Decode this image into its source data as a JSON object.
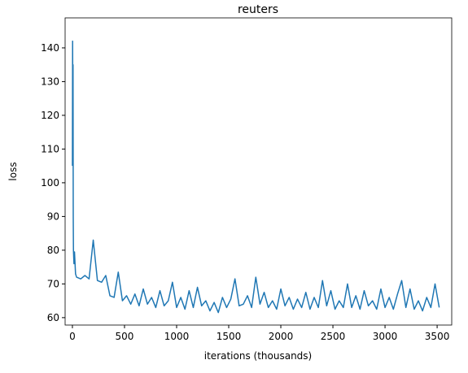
{
  "chart_data": {
    "type": "line",
    "title": "reuters",
    "x_label": "iterations (thousands)",
    "y_label": "loss",
    "x": [
      0,
      2,
      4,
      6,
      8,
      10,
      15,
      20,
      30,
      40,
      80,
      120,
      160,
      200,
      240,
      280,
      320,
      360,
      400,
      440,
      480,
      520,
      560,
      600,
      640,
      680,
      720,
      760,
      800,
      840,
      880,
      920,
      960,
      1000,
      1040,
      1080,
      1120,
      1160,
      1200,
      1240,
      1280,
      1320,
      1360,
      1400,
      1440,
      1480,
      1520,
      1560,
      1600,
      1640,
      1680,
      1720,
      1760,
      1800,
      1840,
      1880,
      1920,
      1960,
      2000,
      2040,
      2080,
      2120,
      2160,
      2200,
      2240,
      2280,
      2320,
      2360,
      2400,
      2440,
      2480,
      2520,
      2560,
      2600,
      2640,
      2680,
      2720,
      2760,
      2800,
      2840,
      2880,
      2920,
      2960,
      3000,
      3040,
      3080,
      3120,
      3160,
      3200,
      3240,
      3280,
      3320,
      3360,
      3400,
      3440,
      3480,
      3520
    ],
    "series": [
      {
        "name": "loss",
        "color": "#1f77b4",
        "values": [
          105,
          142,
          120,
          135,
          90,
          80,
          76,
          79.5,
          73,
          72,
          71.5,
          72.5,
          71.5,
          83,
          71,
          70.5,
          72.5,
          66.5,
          66,
          73.5,
          65,
          66.5,
          64,
          67,
          63.5,
          68.5,
          64,
          66,
          63,
          68,
          63.5,
          65,
          70.5,
          63,
          66,
          62.5,
          68,
          63,
          69,
          63.5,
          65,
          62,
          64.5,
          61.5,
          66,
          63,
          65.5,
          71.5,
          63.5,
          64,
          66.5,
          63,
          72,
          64,
          67.5,
          63,
          65,
          62.5,
          68.5,
          63.5,
          66,
          62.5,
          65.5,
          63,
          67.5,
          62.5,
          66,
          63,
          71,
          63.5,
          68,
          62.5,
          65,
          63,
          70,
          63,
          66.5,
          62.5,
          68,
          63.5,
          65,
          62.5,
          68.5,
          63,
          66,
          62.5,
          67,
          71,
          63,
          68.5,
          62.5,
          65,
          62,
          66,
          63,
          70,
          63
        ]
      }
    ],
    "xlim": [
      -70,
      3640
    ],
    "ylim": [
      57.8,
      148.9
    ],
    "xticks": [
      0,
      500,
      1000,
      1500,
      2000,
      2500,
      3000,
      3500
    ],
    "yticks": [
      60,
      70,
      80,
      90,
      100,
      110,
      120,
      130,
      140
    ]
  }
}
